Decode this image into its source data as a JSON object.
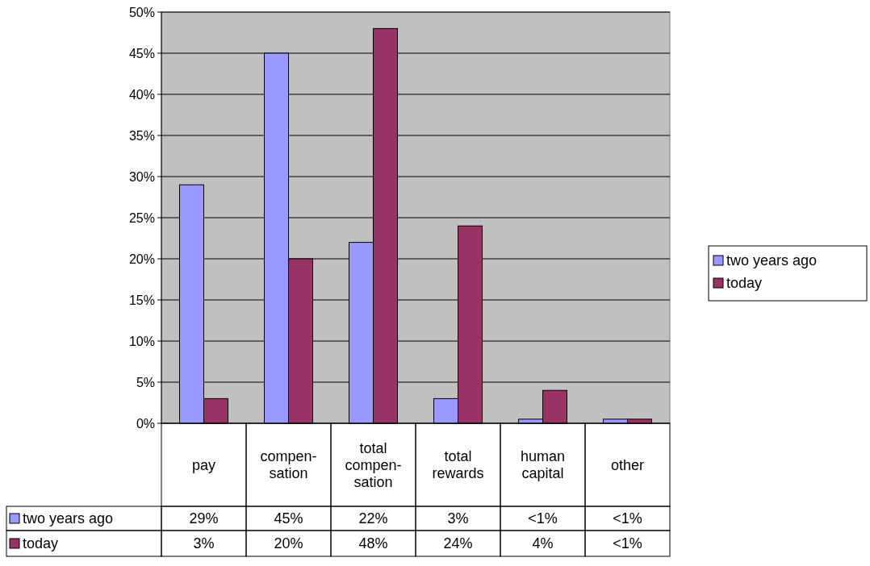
{
  "chart_data": {
    "type": "bar",
    "categories": [
      "pay",
      "compen-sation",
      "total compen-sation",
      "total rewards",
      "human capital",
      "other"
    ],
    "series": [
      {
        "name": "two years ago",
        "color": "#9999ff",
        "values": [
          29,
          45,
          22,
          3,
          0.5,
          0.5
        ],
        "value_labels": [
          "29%",
          "45%",
          "22%",
          "3%",
          "<1%",
          "<1%"
        ]
      },
      {
        "name": "today",
        "color": "#993366",
        "values": [
          3,
          20,
          48,
          24,
          4,
          0.5
        ],
        "value_labels": [
          "3%",
          "20%",
          "48%",
          "24%",
          "4%",
          "<1%"
        ]
      }
    ],
    "ylim": [
      0,
      50
    ],
    "yticks": [
      {
        "value": 0,
        "label": "0%"
      },
      {
        "value": 5,
        "label": "5%"
      },
      {
        "value": 10,
        "label": "10%"
      },
      {
        "value": 15,
        "label": "15%"
      },
      {
        "value": 20,
        "label": "20%"
      },
      {
        "value": 25,
        "label": "25%"
      },
      {
        "value": 30,
        "label": "30%"
      },
      {
        "value": 35,
        "label": "35%"
      },
      {
        "value": 40,
        "label": "40%"
      },
      {
        "value": 45,
        "label": "45%"
      },
      {
        "value": 50,
        "label": "50%"
      }
    ],
    "grid": "y",
    "legend": "right"
  }
}
